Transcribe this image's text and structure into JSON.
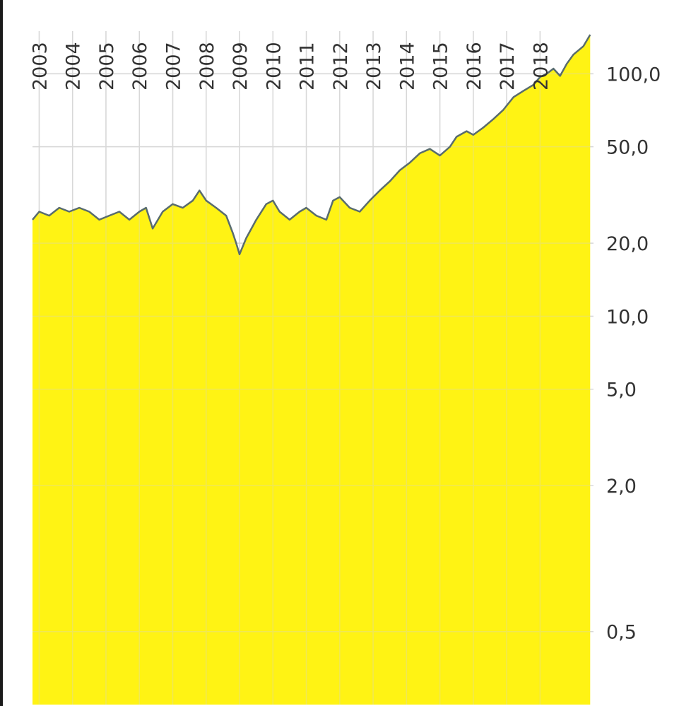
{
  "chart_data": {
    "type": "area",
    "title": "",
    "xlabel": "",
    "ylabel": "",
    "y_scale": "log",
    "ylim": [
      0.25,
      150
    ],
    "xlim": [
      2002.8,
      2019.6
    ],
    "grid": true,
    "legend": "none",
    "x_ticks": [
      "2003",
      "2004",
      "2005",
      "2006",
      "2007",
      "2008",
      "2009",
      "2010",
      "2011",
      "2012",
      "2013",
      "2014",
      "2015",
      "2016",
      "2017",
      "2018"
    ],
    "y_ticks": [
      {
        "value": 100,
        "label": "100,0"
      },
      {
        "value": 50,
        "label": "50,0"
      },
      {
        "value": 20,
        "label": "20,0"
      },
      {
        "value": 10,
        "label": "10,0"
      },
      {
        "value": 5,
        "label": "5,0"
      },
      {
        "value": 2,
        "label": "2,0"
      },
      {
        "value": 0.5,
        "label": "0,5"
      }
    ],
    "series": [
      {
        "x": [
          2002.8,
          2003.0,
          2003.3,
          2003.6,
          2003.9,
          2004.2,
          2004.5,
          2004.8,
          2005.1,
          2005.4,
          2005.7,
          2006.0,
          2006.2,
          2006.4,
          2006.7,
          2007.0,
          2007.3,
          2007.6,
          2007.8,
          2008.0,
          2008.3,
          2008.6,
          2008.8,
          2008.9,
          2009.0,
          2009.2,
          2009.5,
          2009.8,
          2010.0,
          2010.2,
          2010.5,
          2010.8,
          2011.0,
          2011.3,
          2011.6,
          2011.8,
          2012.0,
          2012.3,
          2012.6,
          2012.9,
          2013.2,
          2013.5,
          2013.8,
          2014.1,
          2014.4,
          2014.7,
          2015.0,
          2015.3,
          2015.5,
          2015.8,
          2016.0,
          2016.3,
          2016.6,
          2016.9,
          2017.2,
          2017.5,
          2017.8,
          2018.0,
          2018.2,
          2018.4,
          2018.6,
          2018.8,
          2019.0,
          2019.3,
          2019.5
        ],
        "values": [
          25,
          27,
          26,
          28,
          27,
          28,
          27,
          25,
          26,
          27,
          25,
          27,
          28,
          23,
          27,
          29,
          28,
          30,
          33,
          30,
          28,
          26,
          22,
          20,
          18,
          21,
          25,
          29,
          30,
          27,
          25,
          27,
          28,
          26,
          25,
          30,
          31,
          28,
          27,
          30,
          33,
          36,
          40,
          43,
          47,
          49,
          46,
          50,
          55,
          58,
          56,
          60,
          65,
          71,
          80,
          85,
          90,
          97,
          100,
          105,
          98,
          110,
          120,
          130,
          145
        ]
      }
    ],
    "colors": {
      "fill": "#fff200",
      "line": "#596c6e",
      "grid": "#d8d8d8"
    }
  }
}
